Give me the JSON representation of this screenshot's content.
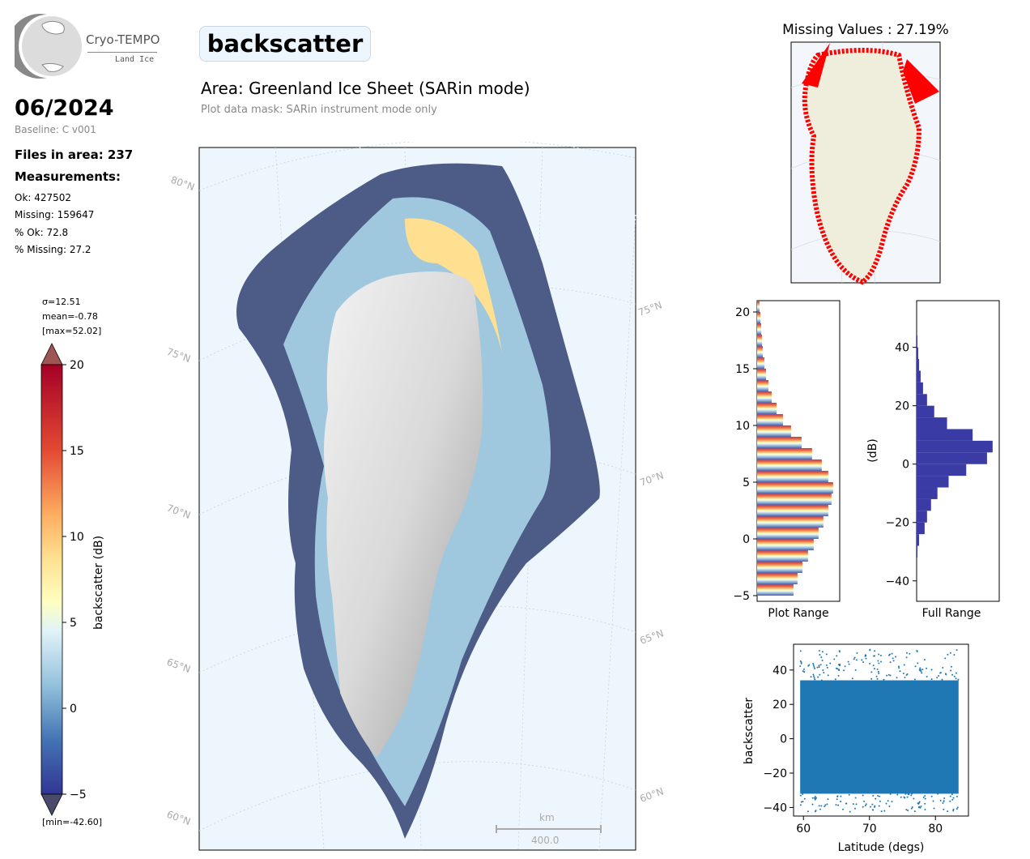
{
  "logo": {
    "line1": "Cryo-TEMPO",
    "line2": "Land Ice"
  },
  "header": {
    "period": "06/2024",
    "baseline": "Baseline: C v001",
    "files": "Files in area: 237",
    "measurements_heading": "Measurements:",
    "stats": [
      "Ok: 427502",
      "Missing: 159647",
      "% Ok: 72.8",
      "% Missing: 27.2"
    ]
  },
  "main": {
    "title": "backscatter",
    "area": "Area: Greenland Ice Sheet (SARin mode)",
    "mask_note": "Plot data mask: SARin instrument mode only"
  },
  "colorbar": {
    "sigma": "σ=12.51",
    "mean": "mean=-0.78",
    "max": "[max=52.02]",
    "min": "[min=-42.60]",
    "label": "backscatter (dB)",
    "ticks": [
      "20",
      "15",
      "10",
      "5",
      "0",
      "−5"
    ],
    "range": [
      -5,
      20
    ]
  },
  "map": {
    "lat_labels_left": [
      "80°N",
      "75°N",
      "70°N",
      "65°N",
      "60°N"
    ],
    "lat_labels_right": [
      "75°N",
      "70°N",
      "65°N",
      "60°N"
    ],
    "scale_unit": "km",
    "scale_value": "400.0",
    "colors": {
      "ocean": "#eef6fd",
      "low": "#313695",
      "mid": "#ffffbf",
      "high": "#a50026"
    }
  },
  "missing_map": {
    "title": "Missing Values : 27.19%",
    "missing_color": "#ff0000",
    "land_color": "#efeddc"
  },
  "chart_data": [
    {
      "type": "bar",
      "orientation": "horizontal",
      "xlabel": "Plot Range",
      "ylabel": "",
      "ylim": [
        -5.5,
        21
      ],
      "yticks": [
        "20",
        "15",
        "10",
        "5",
        "0",
        "−5"
      ],
      "bins": [
        -5,
        -4,
        -3,
        -2,
        -1,
        0,
        1,
        2,
        3,
        4,
        5,
        6,
        7,
        8,
        9,
        10,
        11,
        12,
        13,
        14,
        15,
        16,
        17,
        18,
        19,
        20
      ],
      "values": [
        45,
        50,
        56,
        63,
        70,
        76,
        82,
        88,
        92,
        94,
        88,
        80,
        68,
        55,
        42,
        32,
        24,
        18,
        14,
        11,
        9,
        7,
        6,
        5,
        4,
        3
      ]
    },
    {
      "type": "bar",
      "orientation": "horizontal",
      "xlabel": "Full Range",
      "ylabel": "(dB)",
      "ylim": [
        -47,
        56
      ],
      "yticks": [
        "40",
        "20",
        "0",
        "−20",
        "−40"
      ],
      "bins": [
        -32,
        -28,
        -24,
        -20,
        -16,
        -12,
        -8,
        -4,
        0,
        4,
        8,
        12,
        16,
        20,
        24,
        28,
        32,
        36,
        40
      ],
      "values": [
        1,
        3,
        10,
        13,
        18,
        26,
        40,
        62,
        88,
        95,
        70,
        38,
        22,
        13,
        8,
        5,
        3,
        2,
        1
      ]
    },
    {
      "type": "scatter",
      "xlabel": "Latitude (degs)",
      "ylabel": "backscatter",
      "xlim": [
        58.5,
        85
      ],
      "ylim": [
        -45,
        55
      ],
      "xticks": [
        "60",
        "70",
        "80"
      ],
      "yticks": [
        "40",
        "20",
        "0",
        "−20",
        "−40"
      ],
      "x_range": [
        59.5,
        83.5
      ],
      "y_range": [
        -42.6,
        52.02
      ]
    }
  ]
}
